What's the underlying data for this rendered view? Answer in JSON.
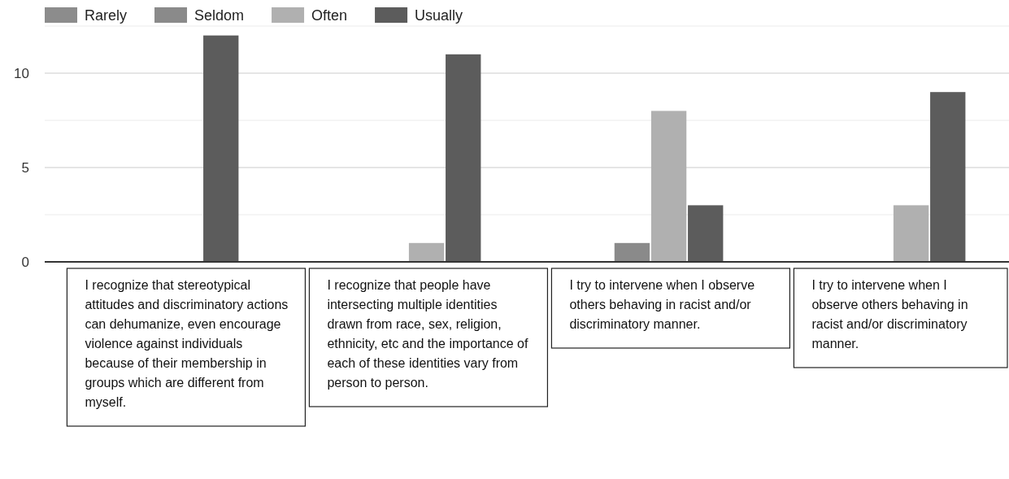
{
  "chart_data": {
    "type": "bar",
    "categories": [
      "I recognize that stereotypical attitudes and discriminatory actions can dehumanize, even encourage violence against individuals because of their membership in groups which are different from myself.",
      "I recognize that people have intersecting multiple identities drawn from race, sex, religion, ethnicity, etc and the importance of each of these identities vary from person to person.",
      "I try to intervene when I observe others behaving in racist and/or discriminatory manner.",
      "I try to intervene when I observe others behaving in racist and/or discriminatory manner."
    ],
    "series": [
      {
        "name": "Rarely",
        "color": "#8c8c8c",
        "values": [
          0,
          0,
          0,
          0
        ]
      },
      {
        "name": "Seldom",
        "color": "#8a8a8a",
        "values": [
          0,
          0,
          1,
          0
        ]
      },
      {
        "name": "Often",
        "color": "#b0b0b0",
        "values": [
          0,
          1,
          8,
          3
        ]
      },
      {
        "name": "Usually",
        "color": "#5c5c5c",
        "values": [
          12,
          11,
          3,
          9
        ]
      }
    ],
    "ylim": [
      0,
      12.5
    ],
    "yticks": [
      0,
      {
        "value": 2.5,
        "label": null
      },
      5,
      {
        "value": 7.5,
        "label": null
      },
      10,
      {
        "value": 12.5,
        "label": null
      }
    ],
    "grid": "y",
    "legend": "top left"
  }
}
